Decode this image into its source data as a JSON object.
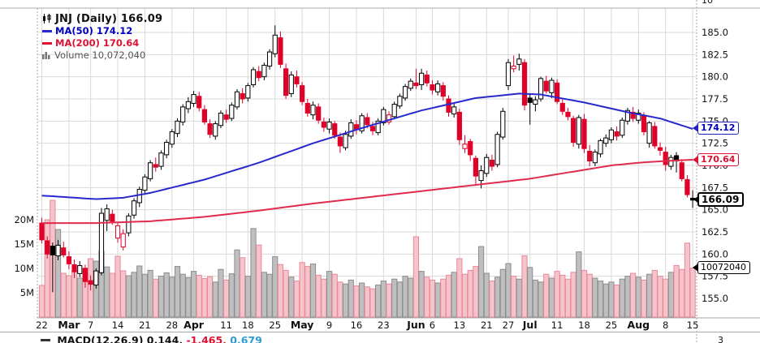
{
  "legend": {
    "title": "JNJ (Daily) 166.09",
    "ma50_label": "MA(50) 174.12",
    "ma200_label": "MA(200) 170.64",
    "volume_label": "Volume 10,072,040"
  },
  "callouts": {
    "ma50": "174.12",
    "ma200": "170.64",
    "last_price": "166.09",
    "volume": "10072040"
  },
  "partials": {
    "top_right_label": "10",
    "bottom_right_label": "3"
  },
  "macd_row": {
    "black_part": "MACD(12,26,9) 0.144,",
    "red_part": "-1.465,",
    "blue_part": "0.679"
  },
  "chart_data": {
    "type": "candlestick-with-volume",
    "symbol": "JNJ",
    "timeframe": "Daily",
    "last_price": 166.09,
    "ma50_last": 174.12,
    "ma200_last": 170.64,
    "last_volume_label": "10,072,040",
    "price_axis_ticks": [
      185.0,
      182.5,
      180.0,
      177.5,
      175.0,
      172.5,
      170.0,
      167.5,
      165.0,
      162.5,
      160.0,
      157.5,
      155.0
    ],
    "volume_axis_ticks": [
      {
        "value": 20,
        "label": "20M"
      },
      {
        "value": 15,
        "label": "15M"
      },
      {
        "value": 10,
        "label": "10M"
      },
      {
        "value": 5,
        "label": "5M"
      }
    ],
    "x_ticks": [
      {
        "i": 0,
        "label": "22",
        "bold": false
      },
      {
        "i": 5,
        "label": "Mar",
        "bold": true
      },
      {
        "i": 9,
        "label": "7",
        "bold": false
      },
      {
        "i": 14,
        "label": "14",
        "bold": false
      },
      {
        "i": 19,
        "label": "21",
        "bold": false
      },
      {
        "i": 24,
        "label": "28",
        "bold": false
      },
      {
        "i": 28,
        "label": "Apr",
        "bold": true
      },
      {
        "i": 34,
        "label": "11",
        "bold": false
      },
      {
        "i": 38,
        "label": "18",
        "bold": false
      },
      {
        "i": 43,
        "label": "25",
        "bold": false
      },
      {
        "i": 48,
        "label": "May",
        "bold": true
      },
      {
        "i": 53,
        "label": "9",
        "bold": false
      },
      {
        "i": 58,
        "label": "16",
        "bold": false
      },
      {
        "i": 63,
        "label": "23",
        "bold": false
      },
      {
        "i": 69,
        "label": "Jun",
        "bold": true
      },
      {
        "i": 72,
        "label": "6",
        "bold": false
      },
      {
        "i": 77,
        "label": "13",
        "bold": false
      },
      {
        "i": 82,
        "label": "21",
        "bold": false
      },
      {
        "i": 86,
        "label": "27",
        "bold": false
      },
      {
        "i": 90,
        "label": "Jul",
        "bold": true
      },
      {
        "i": 95,
        "label": "11",
        "bold": false
      },
      {
        "i": 100,
        "label": "18",
        "bold": false
      },
      {
        "i": 105,
        "label": "25",
        "bold": false
      },
      {
        "i": 110,
        "label": "Aug",
        "bold": true
      },
      {
        "i": 115,
        "label": "8",
        "bold": false
      },
      {
        "i": 120,
        "label": "15",
        "bold": false
      }
    ],
    "candle_kinds_legend": {
      "w": "up hollow black",
      "r": "down solid red",
      "rh": "up hollow red",
      "b": "down solid black"
    },
    "candles": [
      [
        163.5,
        164.1,
        161.2,
        161.6,
        "r"
      ],
      [
        161.5,
        162.0,
        159.5,
        160.0,
        "r"
      ],
      [
        160.9,
        161.3,
        155.7,
        159.9,
        "b"
      ],
      [
        159.8,
        161.6,
        159.3,
        161.0,
        "w"
      ],
      [
        160.7,
        161.4,
        159.6,
        159.9,
        "r"
      ],
      [
        159.7,
        160.3,
        158.3,
        158.9,
        "r"
      ],
      [
        158.8,
        159.4,
        157.3,
        158.0,
        "r"
      ],
      [
        157.8,
        159.2,
        157.4,
        158.7,
        "w"
      ],
      [
        158.4,
        158.8,
        156.2,
        156.9,
        "r"
      ],
      [
        157.0,
        157.6,
        155.9,
        156.6,
        "r"
      ],
      [
        156.5,
        158.4,
        156.1,
        158.1,
        "w"
      ],
      [
        157.9,
        165.2,
        157.6,
        164.6,
        "w"
      ],
      [
        163.8,
        165.6,
        162.6,
        165.1,
        "w"
      ],
      [
        164.5,
        165.0,
        163.3,
        163.7,
        "r"
      ],
      [
        161.8,
        163.5,
        161.3,
        163.2,
        "rh"
      ],
      [
        160.8,
        162.8,
        160.4,
        162.3,
        "rh"
      ],
      [
        162.4,
        164.6,
        162.0,
        164.3,
        "w"
      ],
      [
        164.4,
        166.3,
        164.0,
        166.0,
        "w"
      ],
      [
        165.8,
        167.6,
        165.3,
        167.3,
        "w"
      ],
      [
        167.2,
        169.0,
        166.8,
        168.7,
        "w"
      ],
      [
        168.5,
        170.6,
        168.2,
        170.3,
        "w"
      ],
      [
        170.1,
        170.9,
        169.3,
        169.8,
        "r"
      ],
      [
        169.9,
        171.7,
        169.5,
        171.4,
        "w"
      ],
      [
        171.2,
        172.9,
        170.8,
        172.6,
        "w"
      ],
      [
        172.4,
        174.1,
        172.0,
        173.8,
        "w"
      ],
      [
        173.6,
        175.3,
        173.2,
        175.0,
        "w"
      ],
      [
        174.9,
        176.9,
        174.5,
        176.6,
        "w"
      ],
      [
        176.4,
        177.7,
        175.9,
        177.2,
        "w"
      ],
      [
        177.0,
        178.4,
        176.6,
        178.0,
        "w"
      ],
      [
        177.8,
        178.3,
        176.1,
        176.5,
        "r"
      ],
      [
        176.3,
        176.8,
        174.6,
        174.9,
        "r"
      ],
      [
        174.7,
        175.2,
        173.1,
        173.5,
        "r"
      ],
      [
        173.3,
        175.0,
        172.9,
        174.7,
        "w"
      ],
      [
        174.5,
        176.2,
        174.2,
        175.9,
        "w"
      ],
      [
        175.7,
        176.3,
        174.8,
        175.2,
        "r"
      ],
      [
        175.3,
        177.1,
        175.0,
        176.8,
        "w"
      ],
      [
        176.6,
        178.6,
        176.3,
        178.3,
        "w"
      ],
      [
        178.1,
        178.7,
        177.0,
        177.5,
        "r"
      ],
      [
        177.6,
        179.3,
        177.2,
        179.0,
        "w"
      ],
      [
        179.1,
        181.1,
        178.8,
        180.8,
        "w"
      ],
      [
        180.6,
        181.2,
        179.5,
        179.9,
        "r"
      ],
      [
        180.0,
        181.6,
        179.6,
        181.3,
        "w"
      ],
      [
        181.2,
        183.1,
        180.8,
        182.8,
        "w"
      ],
      [
        182.6,
        185.8,
        182.2,
        184.7,
        "w"
      ],
      [
        184.4,
        185.1,
        181.0,
        181.4,
        "r"
      ],
      [
        180.9,
        181.5,
        177.5,
        177.9,
        "r"
      ],
      [
        178.1,
        180.6,
        177.7,
        180.2,
        "w"
      ],
      [
        180.0,
        180.7,
        178.8,
        179.2,
        "r"
      ],
      [
        179.0,
        179.4,
        176.8,
        177.2,
        "r"
      ],
      [
        177.0,
        177.5,
        175.5,
        175.9,
        "r"
      ],
      [
        175.7,
        177.2,
        175.2,
        176.8,
        "w"
      ],
      [
        176.6,
        177.0,
        174.7,
        175.1,
        "r"
      ],
      [
        174.9,
        175.4,
        173.8,
        174.3,
        "r"
      ],
      [
        174.1,
        175.3,
        173.6,
        174.9,
        "w"
      ],
      [
        174.7,
        175.0,
        173.0,
        173.4,
        "r"
      ],
      [
        173.2,
        173.7,
        171.4,
        172.2,
        "r"
      ],
      [
        172.0,
        173.9,
        171.7,
        173.5,
        "w"
      ],
      [
        173.3,
        175.2,
        173.0,
        174.8,
        "w"
      ],
      [
        174.6,
        175.1,
        173.5,
        174.1,
        "r"
      ],
      [
        173.9,
        175.9,
        173.6,
        175.6,
        "w"
      ],
      [
        175.4,
        175.9,
        174.2,
        174.6,
        "r"
      ],
      [
        174.4,
        174.9,
        173.4,
        173.9,
        "r"
      ],
      [
        173.7,
        175.3,
        173.4,
        175.0,
        "w"
      ],
      [
        174.8,
        176.6,
        174.5,
        176.3,
        "w"
      ],
      [
        174.9,
        176.1,
        174.6,
        175.7,
        "rh"
      ],
      [
        175.5,
        177.2,
        175.2,
        176.9,
        "w"
      ],
      [
        176.7,
        178.1,
        176.4,
        177.8,
        "w"
      ],
      [
        177.6,
        179.2,
        177.3,
        178.9,
        "w"
      ],
      [
        178.7,
        179.8,
        178.4,
        179.5,
        "w"
      ],
      [
        179.3,
        180.9,
        178.6,
        179.0,
        "r"
      ],
      [
        179.1,
        180.9,
        178.5,
        180.4,
        "w"
      ],
      [
        180.2,
        180.7,
        178.9,
        179.3,
        "r"
      ],
      [
        179.1,
        179.6,
        178.0,
        178.5,
        "r"
      ],
      [
        178.3,
        179.6,
        177.9,
        179.2,
        "w"
      ],
      [
        179.0,
        179.4,
        177.3,
        177.8,
        "r"
      ],
      [
        177.5,
        177.9,
        175.5,
        176.0,
        "r"
      ],
      [
        175.8,
        177.0,
        175.4,
        176.6,
        "w"
      ],
      [
        176.0,
        176.4,
        172.3,
        172.9,
        "r"
      ],
      [
        171.9,
        173.4,
        171.4,
        172.4,
        "rh"
      ],
      [
        172.7,
        173.0,
        170.5,
        171.2,
        "r"
      ],
      [
        170.8,
        171.1,
        167.8,
        168.8,
        "r"
      ],
      [
        168.3,
        170.0,
        167.4,
        169.4,
        "w"
      ],
      [
        169.1,
        171.3,
        168.7,
        170.9,
        "w"
      ],
      [
        170.6,
        171.2,
        169.4,
        169.9,
        "r"
      ],
      [
        170.1,
        173.8,
        169.8,
        173.5,
        "w"
      ],
      [
        173.2,
        176.5,
        172.9,
        176.1,
        "w"
      ],
      [
        179.0,
        182.0,
        178.5,
        181.6,
        "w"
      ],
      [
        180.9,
        182.4,
        180.5,
        181.2,
        "rh"
      ],
      [
        181.4,
        182.6,
        180.7,
        182.0,
        "w"
      ],
      [
        181.6,
        182.0,
        176.2,
        176.8,
        "r"
      ],
      [
        177.6,
        178.1,
        174.6,
        177.1,
        "b"
      ],
      [
        176.9,
        177.8,
        176.1,
        177.4,
        "w"
      ],
      [
        177.5,
        180.0,
        177.2,
        179.8,
        "w"
      ],
      [
        179.5,
        180.1,
        178.1,
        178.4,
        "r"
      ],
      [
        178.2,
        179.9,
        177.6,
        179.6,
        "w"
      ],
      [
        179.3,
        179.7,
        176.9,
        177.2,
        "r"
      ],
      [
        177.0,
        177.6,
        175.7,
        176.1,
        "r"
      ],
      [
        176.0,
        176.5,
        175.1,
        175.5,
        "r"
      ],
      [
        175.3,
        175.6,
        172.1,
        172.6,
        "r"
      ],
      [
        172.4,
        175.7,
        171.9,
        175.4,
        "w"
      ],
      [
        175.2,
        175.8,
        171.4,
        171.9,
        "r"
      ],
      [
        171.6,
        172.3,
        169.9,
        170.5,
        "r"
      ],
      [
        170.3,
        171.8,
        169.9,
        171.5,
        "w"
      ],
      [
        171.3,
        173.0,
        170.9,
        172.8,
        "w"
      ],
      [
        172.5,
        173.5,
        172.1,
        173.1,
        "w"
      ],
      [
        172.9,
        174.3,
        172.5,
        174.0,
        "w"
      ],
      [
        173.8,
        174.4,
        172.8,
        173.3,
        "r"
      ],
      [
        173.4,
        175.4,
        173.1,
        175.1,
        "w"
      ],
      [
        175.0,
        176.5,
        174.6,
        176.2,
        "w"
      ],
      [
        176.0,
        176.6,
        174.9,
        175.3,
        "r"
      ],
      [
        175.1,
        176.3,
        174.7,
        175.9,
        "w"
      ],
      [
        175.6,
        176.0,
        173.4,
        173.8,
        "r"
      ],
      [
        172.5,
        175.0,
        172.0,
        174.8,
        "w"
      ],
      [
        174.4,
        174.9,
        171.9,
        172.2,
        "r"
      ],
      [
        172.0,
        172.6,
        171.1,
        171.7,
        "r"
      ],
      [
        171.5,
        172.1,
        169.4,
        170.1,
        "r"
      ],
      [
        169.9,
        171.2,
        169.5,
        170.9,
        "w"
      ],
      [
        171.1,
        171.5,
        169.2,
        170.5,
        "b"
      ],
      [
        170.3,
        170.7,
        168.2,
        168.5,
        "r"
      ],
      [
        168.4,
        168.9,
        166.4,
        166.7,
        "r"
      ],
      [
        166.3,
        167.2,
        165.2,
        166.09,
        "b"
      ]
    ],
    "volumes_millions": [
      6.5,
      20,
      24,
      18,
      9,
      8.5,
      9.5,
      8,
      10,
      12,
      11.5,
      13.5,
      10.3,
      9,
      12.5,
      9.5,
      8.5,
      9.2,
      10.5,
      8.8,
      9.6,
      7.8,
      8.4,
      9.1,
      8.2,
      10.4,
      8.8,
      8.1,
      9.4,
      8.6,
      7.9,
      8.3,
      7.2,
      9.8,
      7.6,
      8.9,
      13.8,
      12.2,
      8.4,
      18.2,
      14.8,
      9.2,
      8.8,
      12.4,
      10.8,
      9.6,
      8.2,
      7.4,
      11.2,
      10.4,
      10.9,
      8.6,
      7.8,
      9.4,
      8.8,
      7.2,
      6.8,
      7.6,
      6.4,
      7.0,
      6.2,
      5.8,
      6.6,
      7.4,
      6.8,
      7.8,
      7.2,
      8.4,
      8.0,
      16.5,
      9.4,
      8.2,
      7.6,
      7.0,
      7.8,
      8.6,
      9.2,
      12.0,
      8.8,
      9.6,
      10.4,
      14.5,
      9.0,
      7.4,
      8.2,
      9.8,
      11.0,
      8.4,
      7.8,
      12.6,
      10.2,
      7.6,
      7.2,
      8.8,
      8.0,
      9.4,
      8.6,
      7.8,
      9.2,
      13.4,
      9.6,
      8.8,
      8.0,
      7.4,
      6.8,
      7.2,
      6.6,
      7.8,
      8.4,
      9.0,
      8.2,
      7.6,
      8.8,
      9.6,
      8.4,
      7.8,
      9.2,
      10.6,
      9.8,
      15.2,
      10.07
    ],
    "ma50_anchors": [
      [
        0,
        166.6
      ],
      [
        10,
        166.2
      ],
      [
        15,
        166.35
      ],
      [
        20,
        166.9
      ],
      [
        30,
        168.4
      ],
      [
        40,
        170.3
      ],
      [
        50,
        172.5
      ],
      [
        60,
        174.4
      ],
      [
        70,
        176.2
      ],
      [
        80,
        177.6
      ],
      [
        88,
        178.1
      ],
      [
        92,
        178.0
      ],
      [
        100,
        177.1
      ],
      [
        108,
        176.0
      ],
      [
        114,
        175.3
      ],
      [
        120,
        174.12
      ]
    ],
    "ma200_anchors": [
      [
        0,
        163.5
      ],
      [
        10,
        163.5
      ],
      [
        20,
        163.7
      ],
      [
        30,
        164.2
      ],
      [
        40,
        164.9
      ],
      [
        50,
        165.7
      ],
      [
        60,
        166.4
      ],
      [
        70,
        167.1
      ],
      [
        80,
        167.8
      ],
      [
        90,
        168.5
      ],
      [
        100,
        169.5
      ],
      [
        105,
        170.0
      ],
      [
        110,
        170.3
      ],
      [
        115,
        170.5
      ],
      [
        120,
        170.64
      ]
    ],
    "colors": {
      "up_outline": "#000000",
      "down_red": "#e00028",
      "ma50_blue": "#2828cd",
      "ma200_red": "#e12b4e",
      "vol_up_fill": "#bfbfbf",
      "vol_up_stroke": "#8c8c8c",
      "vol_down_fill": "#f5c3ca",
      "vol_down_stroke": "#e9889a",
      "grid": "#d9d9d9",
      "axis": "#aaaaaa"
    },
    "grid": true,
    "price_range_visible": [
      152.6,
      187.7
    ]
  }
}
